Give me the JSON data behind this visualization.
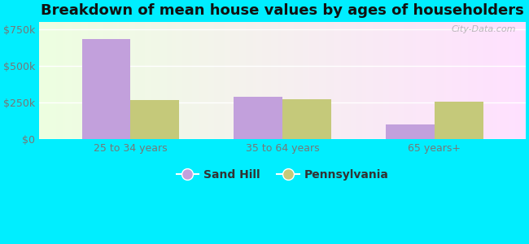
{
  "title": "Breakdown of mean house values by ages of householders",
  "categories": [
    "25 to 34 years",
    "35 to 64 years",
    "65 years+"
  ],
  "sand_hill_values": [
    680000,
    290000,
    100000
  ],
  "pennsylvania_values": [
    265000,
    270000,
    255000
  ],
  "bar_color_sandhill": "#c2a0dc",
  "bar_color_pennsylvania": "#c5c97a",
  "ylim": [
    0,
    800000
  ],
  "yticks": [
    0,
    250000,
    500000,
    750000
  ],
  "ytick_labels": [
    "$0",
    "$250k",
    "$500k",
    "$750k"
  ],
  "background_outer": "#00eeff",
  "legend_sandhill": "Sand Hill",
  "legend_pennsylvania": "Pennsylvania",
  "watermark": "City-Data.com",
  "bar_width": 0.32,
  "title_fontsize": 13,
  "axis_label_fontsize": 9,
  "legend_fontsize": 10
}
